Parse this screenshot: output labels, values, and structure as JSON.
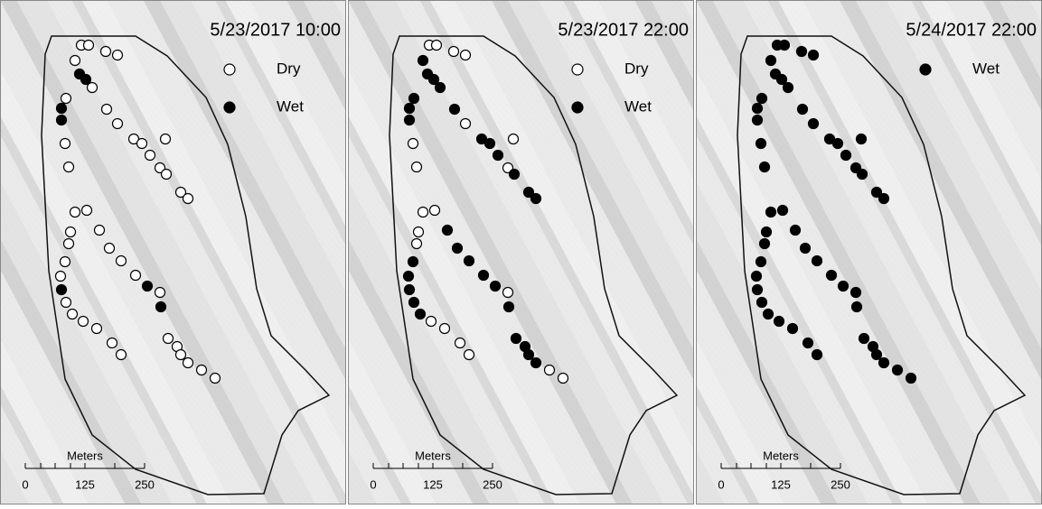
{
  "panels": [
    {
      "title": "5/23/2017 10:00",
      "legend": [
        {
          "label": "Dry"
        },
        {
          "label": "Wet"
        }
      ]
    },
    {
      "title": "5/23/2017 22:00",
      "legend": [
        {
          "label": "Dry"
        },
        {
          "label": "Wet"
        }
      ]
    },
    {
      "title": "5/24/2017 22:00",
      "legend": [
        {
          "label": "Wet"
        }
      ]
    }
  ],
  "scale_bar": {
    "unit": "Meters",
    "labels": [
      "0",
      "125",
      "250"
    ]
  }
}
